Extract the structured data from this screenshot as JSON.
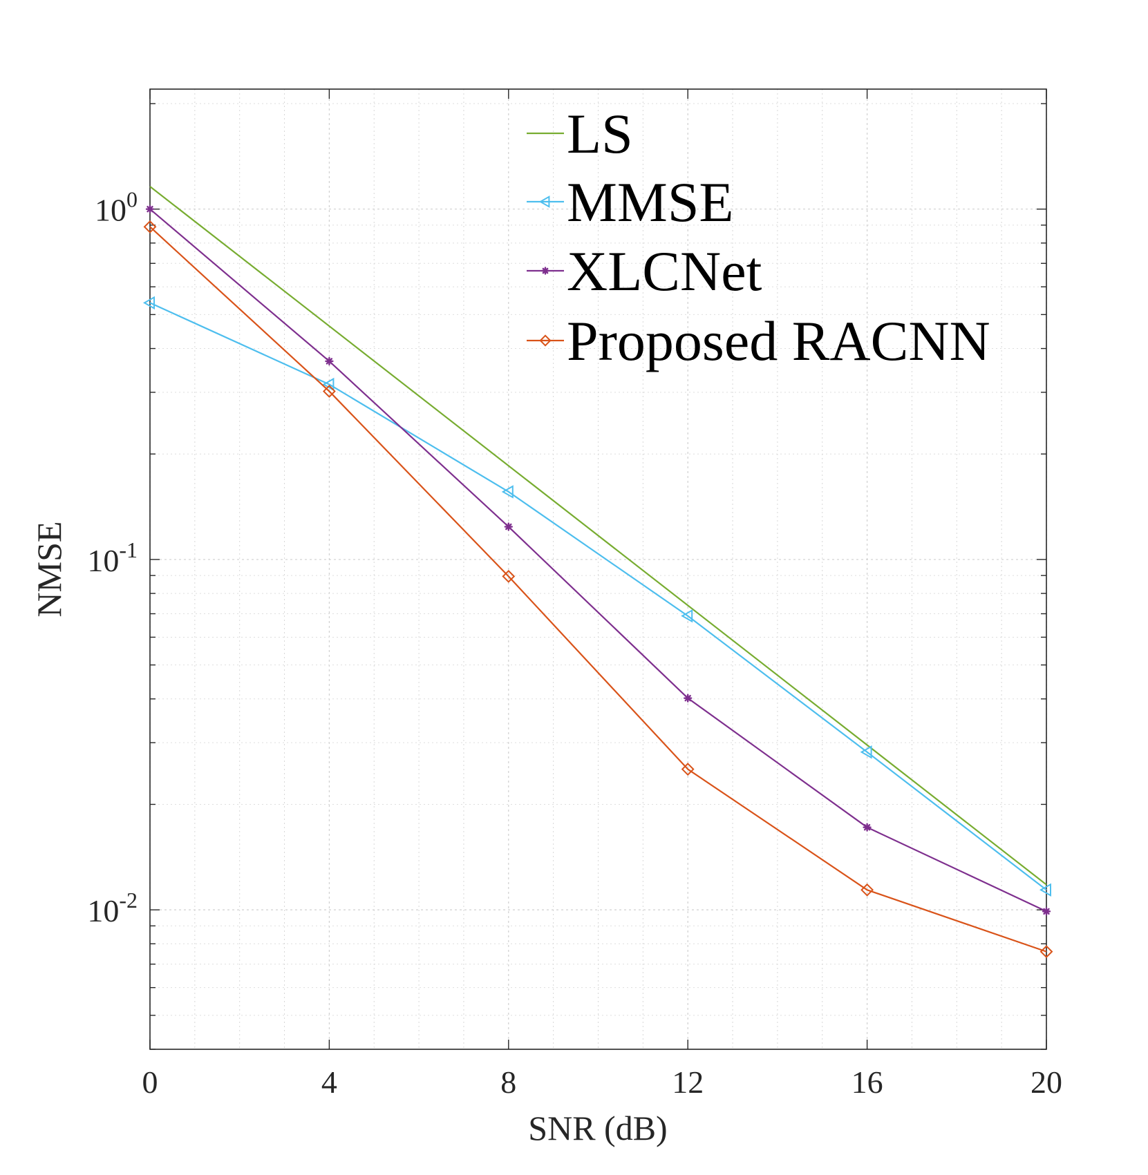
{
  "chart_data": {
    "type": "line",
    "title": "",
    "xlabel": "SNR (dB)",
    "ylabel": "NMSE",
    "xscale": "linear",
    "yscale": "log",
    "xlim": [
      0,
      20
    ],
    "ylim": [
      0.004,
      2.2
    ],
    "xticks": [
      0,
      4,
      8,
      12,
      16,
      20
    ],
    "xtick_labels": [
      "0",
      "4",
      "8",
      "12",
      "16",
      "20"
    ],
    "yticks": [
      {
        "value": 1,
        "base": "10",
        "exp": "0"
      },
      {
        "value": 0.1,
        "base": "10",
        "exp": "-1"
      },
      {
        "value": 0.01,
        "base": "10",
        "exp": "-2"
      }
    ],
    "grid": true,
    "minor_grid": true,
    "legend_position": "top-right",
    "series": [
      {
        "name": "LS",
        "color": "#77AC30",
        "marker": "none",
        "x": [
          0,
          20
        ],
        "values": [
          1.16,
          0.0118
        ]
      },
      {
        "name": "MMSE",
        "color": "#4DBEEE",
        "marker": "triangle-left",
        "x": [
          0,
          4,
          8,
          12,
          16,
          20
        ],
        "values": [
          0.54,
          0.316,
          0.156,
          0.069,
          0.0282,
          0.0114
        ]
      },
      {
        "name": "XLCNet",
        "color": "#7E2F8E",
        "marker": "asterisk",
        "x": [
          0,
          4,
          8,
          12,
          16,
          20
        ],
        "values": [
          1.0,
          0.368,
          0.124,
          0.0402,
          0.0172,
          0.0099
        ]
      },
      {
        "name": "Proposed RACNN",
        "color": "#D95319",
        "marker": "diamond",
        "x": [
          0,
          4,
          8,
          12,
          16,
          20
        ],
        "values": [
          0.89,
          0.302,
          0.0895,
          0.0252,
          0.0114,
          0.0076
        ]
      }
    ]
  }
}
